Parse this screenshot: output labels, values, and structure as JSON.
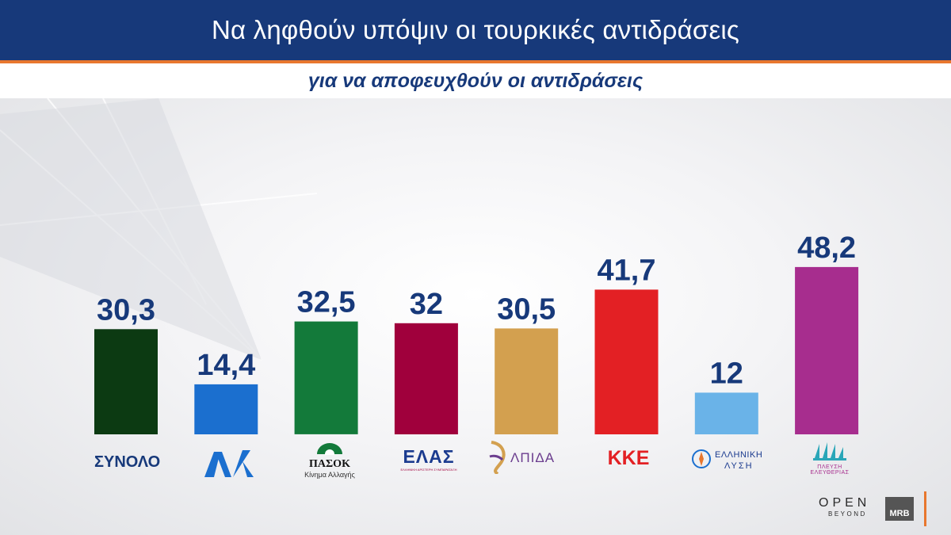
{
  "header": {
    "title": "Να ληφθούν υπόψιν οι τουρκικές αντιδράσεις",
    "subtitle": "για να αποφευχθούν οι αντιδράσεις"
  },
  "colors": {
    "header_bg": "#17397a",
    "accent": "#e8772e",
    "value_text": "#17397a"
  },
  "chart_data": {
    "type": "bar",
    "title": "Να ληφθούν υπόψιν οι τουρκικές αντιδράσεις",
    "subtitle": "για να αποφευχθούν οι αντιδράσεις",
    "categories": [
      "ΣΥΝΟΛΟ",
      "ΝΔ",
      "ΠΑΣΟΚ",
      "ΕΛΑΣ",
      "ΕΛΠΙΔΑ",
      "ΚΚΕ",
      "ΕΛΛΗΝΙΚΗ ΛΥΣΗ",
      "ΠΛΕΥΣΗ ΕΛΕΥΘΕΡΙΑΣ"
    ],
    "values": [
      30.3,
      14.4,
      32.5,
      32,
      30.5,
      41.7,
      12,
      48.2
    ],
    "value_labels": [
      "30,3",
      "14,4",
      "32,5",
      "32",
      "30,5",
      "41,7",
      "12",
      "48,2"
    ],
    "colors": [
      "#0c3a12",
      "#1b6fcf",
      "#137a3a",
      "#a0003c",
      "#d3a04f",
      "#e32024",
      "#6ab3e8",
      "#a72d8e"
    ],
    "ylim": [
      0,
      100
    ],
    "xlabel": "",
    "ylabel": "",
    "grid": false,
    "legend": "none"
  },
  "logos": {
    "total_label": "ΣΥΝΟΛΟ",
    "nd": "ΝΔ",
    "pasok": "ΠΑΣΟΚ",
    "pasok_sub": "Κίνημα Αλλαγής",
    "elas": "ΕΛΑΣ",
    "elas_sub": "ΕΛΛΗΝΙΚΗ ΑΡΙΣΤΕΡΗ ΣΥΜΠΑΡΑΤΑΞΗ",
    "elpida": "ΛΠΙΔΑ",
    "kke": "ΚΚΕ",
    "ellinikilysi_1": "ΕΛΛΗΝΙΚΗ",
    "ellinikilysi_2": "ΛΥΣΗ",
    "plefsi_1": "ΠΛΕΥΣΗ",
    "plefsi_2": "ΕΛΕΥΘΕΡΙΑΣ"
  },
  "branding": {
    "open": "OPEN",
    "beyond": "BEYOND",
    "mrb": "MRB"
  }
}
